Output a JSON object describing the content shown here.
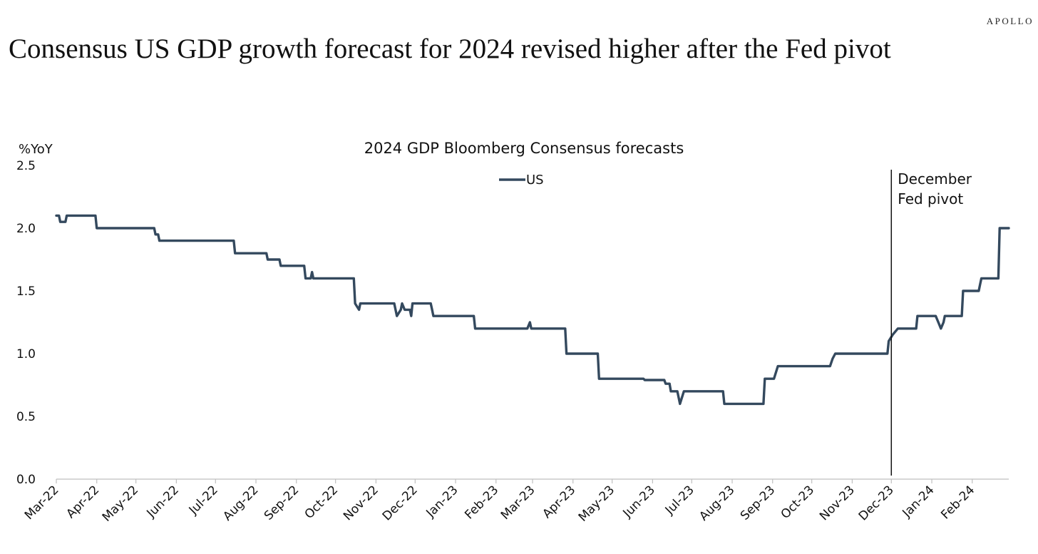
{
  "brand": "APOLLO",
  "headline": "Consensus US GDP growth forecast for 2024 revised higher after the Fed pivot",
  "chart_data": {
    "type": "line",
    "title": "2024 GDP Bloomberg Consensus forecasts",
    "ylabel": "%YoY",
    "xlabel": "",
    "ylim": [
      0,
      2.5
    ],
    "yticks": [
      "0.0",
      "0.5",
      "1.0",
      "1.5",
      "2.0",
      "2.5"
    ],
    "xlim": [
      "2022-03-01",
      "2024-02-29"
    ],
    "xticks": [
      {
        "label": "Mar-22",
        "date": "2022-03-01"
      },
      {
        "label": "Apr-22",
        "date": "2022-04-01"
      },
      {
        "label": "May-22",
        "date": "2022-05-01"
      },
      {
        "label": "Jun-22",
        "date": "2022-06-01"
      },
      {
        "label": "Jul-22",
        "date": "2022-07-01"
      },
      {
        "label": "Aug-22",
        "date": "2022-08-01"
      },
      {
        "label": "Sep-22",
        "date": "2022-09-01"
      },
      {
        "label": "Oct-22",
        "date": "2022-10-01"
      },
      {
        "label": "Nov-22",
        "date": "2022-11-01"
      },
      {
        "label": "Dec-22",
        "date": "2022-12-01"
      },
      {
        "label": "Jan-23",
        "date": "2023-01-01"
      },
      {
        "label": "Feb-23",
        "date": "2023-02-01"
      },
      {
        "label": "Mar-23",
        "date": "2023-03-01"
      },
      {
        "label": "Apr-23",
        "date": "2023-04-01"
      },
      {
        "label": "May-23",
        "date": "2023-05-01"
      },
      {
        "label": "Jun-23",
        "date": "2023-06-01"
      },
      {
        "label": "Jul-23",
        "date": "2023-07-01"
      },
      {
        "label": "Aug-23",
        "date": "2023-08-01"
      },
      {
        "label": "Sep-23",
        "date": "2023-09-01"
      },
      {
        "label": "Oct-23",
        "date": "2023-10-01"
      },
      {
        "label": "Nov-23",
        "date": "2023-11-01"
      },
      {
        "label": "Dec-23",
        "date": "2023-12-01"
      },
      {
        "label": "Jan-24",
        "date": "2024-01-01"
      },
      {
        "label": "Feb-24",
        "date": "2024-02-01"
      }
    ],
    "grid": false,
    "legend": "top-center",
    "series": [
      {
        "name": "US",
        "color": "#34495e",
        "points": [
          [
            "2022-03-01",
            2.1
          ],
          [
            "2022-03-03",
            2.1
          ],
          [
            "2022-03-04",
            2.05
          ],
          [
            "2022-03-08",
            2.05
          ],
          [
            "2022-03-09",
            2.1
          ],
          [
            "2022-03-31",
            2.1
          ],
          [
            "2022-04-01",
            2.0
          ],
          [
            "2022-05-15",
            2.0
          ],
          [
            "2022-05-16",
            1.95
          ],
          [
            "2022-05-18",
            1.95
          ],
          [
            "2022-05-19",
            1.9
          ],
          [
            "2022-07-15",
            1.9
          ],
          [
            "2022-07-16",
            1.8
          ],
          [
            "2022-08-09",
            1.8
          ],
          [
            "2022-08-10",
            1.75
          ],
          [
            "2022-08-19",
            1.75
          ],
          [
            "2022-08-20",
            1.7
          ],
          [
            "2022-09-07",
            1.7
          ],
          [
            "2022-09-08",
            1.6
          ],
          [
            "2022-09-12",
            1.6
          ],
          [
            "2022-09-13",
            1.65
          ],
          [
            "2022-09-14",
            1.6
          ],
          [
            "2022-10-15",
            1.6
          ],
          [
            "2022-10-16",
            1.4
          ],
          [
            "2022-10-19",
            1.35
          ],
          [
            "2022-10-20",
            1.4
          ],
          [
            "2022-11-15",
            1.4
          ],
          [
            "2022-11-17",
            1.3
          ],
          [
            "2022-11-20",
            1.35
          ],
          [
            "2022-11-21",
            1.4
          ],
          [
            "2022-11-23",
            1.35
          ],
          [
            "2022-11-27",
            1.35
          ],
          [
            "2022-11-28",
            1.3
          ],
          [
            "2022-11-29",
            1.4
          ],
          [
            "2022-12-13",
            1.4
          ],
          [
            "2022-12-14",
            1.35
          ],
          [
            "2022-12-15",
            1.3
          ],
          [
            "2023-01-15",
            1.3
          ],
          [
            "2023-01-16",
            1.2
          ],
          [
            "2023-02-25",
            1.2
          ],
          [
            "2023-02-27",
            1.25
          ],
          [
            "2023-02-28",
            1.2
          ],
          [
            "2023-03-26",
            1.2
          ],
          [
            "2023-03-27",
            1.0
          ],
          [
            "2023-04-20",
            1.0
          ],
          [
            "2023-04-21",
            0.8
          ],
          [
            "2023-05-25",
            0.8
          ],
          [
            "2023-05-26",
            0.79
          ],
          [
            "2023-06-10",
            0.79
          ],
          [
            "2023-06-11",
            0.76
          ],
          [
            "2023-06-14",
            0.76
          ],
          [
            "2023-06-15",
            0.7
          ],
          [
            "2023-06-20",
            0.7
          ],
          [
            "2023-06-22",
            0.6
          ],
          [
            "2023-06-25",
            0.7
          ],
          [
            "2023-07-25",
            0.7
          ],
          [
            "2023-07-26",
            0.6
          ],
          [
            "2023-08-25",
            0.6
          ],
          [
            "2023-08-26",
            0.8
          ],
          [
            "2023-09-02",
            0.8
          ],
          [
            "2023-09-05",
            0.9
          ],
          [
            "2023-10-15",
            0.9
          ],
          [
            "2023-10-17",
            0.96
          ],
          [
            "2023-10-19",
            1.0
          ],
          [
            "2023-11-28",
            1.0
          ],
          [
            "2023-11-29",
            1.1
          ],
          [
            "2023-12-02",
            1.15
          ],
          [
            "2023-12-06",
            1.2
          ],
          [
            "2023-12-20",
            1.2
          ],
          [
            "2023-12-21",
            1.3
          ],
          [
            "2024-01-04",
            1.3
          ],
          [
            "2024-01-06",
            1.25
          ],
          [
            "2024-01-08",
            1.2
          ],
          [
            "2024-01-10",
            1.25
          ],
          [
            "2024-01-11",
            1.3
          ],
          [
            "2024-01-24",
            1.3
          ],
          [
            "2024-01-25",
            1.5
          ],
          [
            "2024-02-06",
            1.5
          ],
          [
            "2024-02-07",
            1.55
          ],
          [
            "2024-02-08",
            1.6
          ],
          [
            "2024-02-21",
            1.6
          ],
          [
            "2024-02-22",
            2.0
          ],
          [
            "2024-02-29",
            2.0
          ]
        ]
      }
    ],
    "annotations": [
      {
        "text_lines": [
          "December",
          "Fed pivot"
        ],
        "at_date": "2023-12-01"
      }
    ]
  }
}
